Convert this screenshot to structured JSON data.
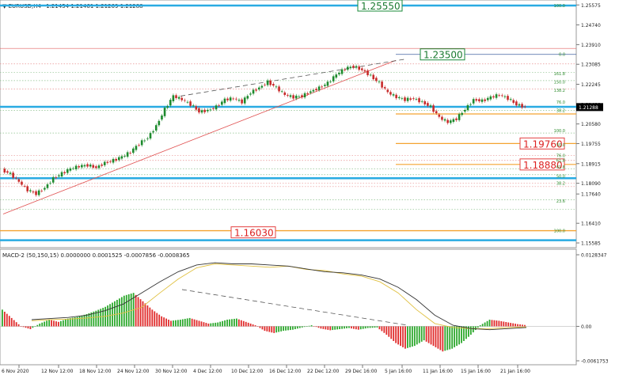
{
  "header": {
    "symbol": "EURUSD,H4",
    "ohlc": "1.21454 1.21461 1.21269 1.21288",
    "indicator": "MACD-2 (50,150,15) 0.0000000 0.0001525 -0.0007856 -0.0008365"
  },
  "chart_data": [
    {
      "type": "line",
      "panel": "price",
      "price_axis_ticks": [
        "1.25575",
        "1.24740",
        "1.23910",
        "1.23085",
        "1.22245",
        "1.21400",
        "1.20580",
        "1.19755",
        "1.18915",
        "1.18090",
        "1.17640",
        "1.16410",
        "1.15585"
      ],
      "ylim": [
        1.1552,
        1.2565
      ],
      "current_price": "1.21288",
      "level_labels": [
        "1.25550",
        "1.23500",
        "1.19760",
        "1.18880",
        "1.16030"
      ],
      "fib_labels": [
        "100.0",
        "0.0",
        "161.8",
        "150.0",
        "138.2",
        "76.0",
        "38.2",
        "100.0",
        "50.0",
        "76.0",
        "61.8",
        "61.8",
        "50.0",
        "38.2",
        "23.6",
        "100.0"
      ],
      "date_labels": [
        "6 Nov 2020",
        "12 Nov 12:00",
        "18 Nov 12:00",
        "24 Nov 12:00",
        "30 Nov 12:00",
        "4 Dec 12:00",
        "10 Dec 12:00",
        "16 Dec 12:00",
        "22 Dec 12:00",
        "29 Dec 16:00",
        "5 Jan 16:00",
        "11 Jan 16:00",
        "15 Jan 16:00",
        "21 Jan 16:00"
      ],
      "price_path": [
        1.1865,
        1.1848,
        1.1815,
        1.178,
        1.1765,
        1.179,
        1.183,
        1.185,
        1.187,
        1.188,
        1.1885,
        1.1875,
        1.1895,
        1.1905,
        1.192,
        1.194,
        1.1975,
        1.2,
        1.205,
        1.212,
        1.2175,
        1.216,
        1.214,
        1.211,
        1.2115,
        1.213,
        1.216,
        1.2165,
        1.215,
        1.219,
        1.221,
        1.2235,
        1.221,
        1.218,
        1.217,
        1.2175,
        1.2195,
        1.221,
        1.223,
        1.2265,
        1.229,
        1.23,
        1.2285,
        1.226,
        1.223,
        1.219,
        1.217,
        1.216,
        1.2165,
        1.215,
        1.213,
        1.2085,
        1.2065,
        1.208,
        1.212,
        1.216,
        1.2155,
        1.217,
        1.218,
        1.2165,
        1.214,
        1.2129
      ]
    },
    {
      "type": "bar",
      "panel": "macd",
      "axis_ticks": [
        "0.0128347",
        "0.00",
        "-0.0061753"
      ],
      "ylim": [
        -0.0061753,
        0.0128347
      ],
      "histogram": [
        0.003,
        0.0015,
        0.0,
        -0.0005,
        0.0005,
        0.0012,
        0.0008,
        0.0014,
        0.0017,
        0.0022,
        0.0028,
        0.0035,
        0.0045,
        0.0055,
        0.006,
        0.0045,
        0.003,
        0.0018,
        0.001,
        0.0012,
        0.0015,
        0.001,
        0.0005,
        0.0007,
        0.0012,
        0.0014,
        0.0008,
        0.0002,
        -0.0008,
        -0.0012,
        -0.0008,
        -0.0006,
        -0.0002,
        0.0002,
        -0.0004,
        -0.0007,
        -0.0005,
        -0.0003,
        -0.0006,
        -0.0003,
        -0.0002,
        -0.0015,
        -0.003,
        -0.004,
        -0.0035,
        -0.0025,
        -0.0035,
        -0.0045,
        -0.004,
        -0.003,
        -0.0015,
        0.0002,
        0.0012,
        0.001,
        0.0007,
        0.0004,
        0.0002
      ],
      "signal_line": [
        0.001,
        0.0012,
        0.0013,
        0.0015,
        0.0018,
        0.0024,
        0.0034,
        0.006,
        0.0085,
        0.0105,
        0.0112,
        0.011,
        0.0108,
        0.0106,
        0.0108,
        0.0102,
        0.01,
        0.0094,
        0.009,
        0.008,
        0.006,
        0.003,
        0.0005,
        -0.0002,
        -0.0004,
        -0.0004,
        -0.0002,
        -0.0001
      ],
      "macd_line": [
        0.0012,
        0.0014,
        0.0016,
        0.002,
        0.0028,
        0.004,
        0.006,
        0.008,
        0.0098,
        0.011,
        0.0114,
        0.0112,
        0.0112,
        0.011,
        0.0108,
        0.0103,
        0.0098,
        0.0096,
        0.0092,
        0.0085,
        0.007,
        0.0048,
        0.002,
        0.0002,
        -0.0004,
        -0.0006,
        -0.0004,
        -0.0002
      ]
    }
  ],
  "colors": {
    "support": "#29abe2",
    "resistance_box": "#1a8a3a",
    "orange_level": "#f4a330",
    "red_level": "#e44040",
    "bull_bar": "#2ca82c",
    "bear_bar": "#e02b2b",
    "signal": "#e0c040",
    "macd_line": "#333333"
  }
}
